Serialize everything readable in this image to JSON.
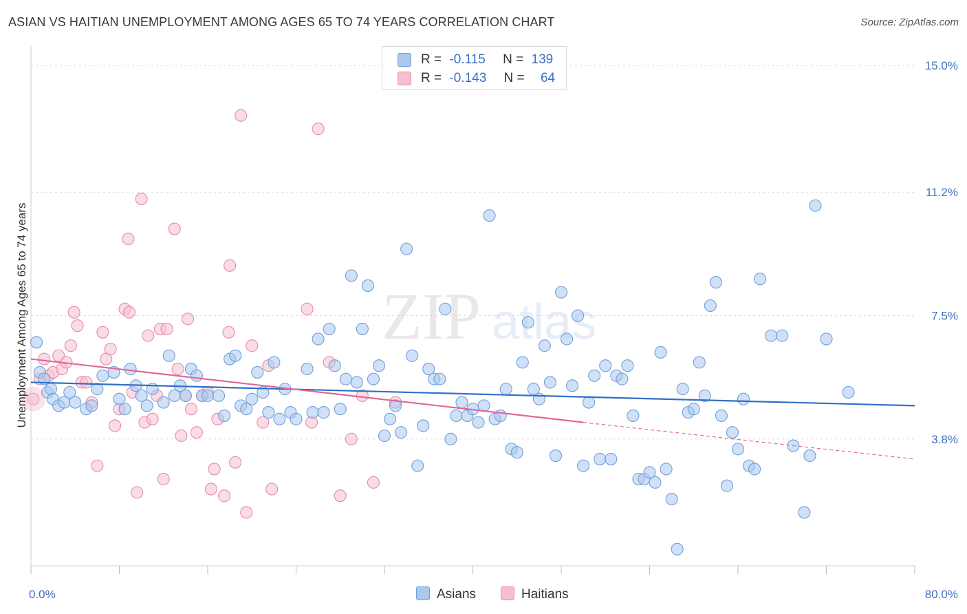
{
  "header": {
    "title": "ASIAN VS HAITIAN UNEMPLOYMENT AMONG AGES 65 TO 74 YEARS CORRELATION CHART",
    "source": "Source: ZipAtlas.com"
  },
  "watermark": {
    "text_zip": "ZIP",
    "text_atlas": "atlas"
  },
  "legend": {
    "asians": {
      "r_label": "R =",
      "r_value": "-0.115",
      "n_label": "N =",
      "n_value": "139"
    },
    "haitians": {
      "r_label": "R =",
      "r_value": "-0.143",
      "n_label": "N =",
      "n_value": "64"
    }
  },
  "colors": {
    "asian_fill": "#aac8f0",
    "asian_stroke": "#6f9fd8",
    "asian_line": "#2e6fc9",
    "haitian_fill": "#f5bfd2",
    "haitian_stroke": "#e68aaa",
    "haitian_line": "#e0679a",
    "tick_label": "#3d6fbf",
    "grid": "#dcdcdc"
  },
  "chart_data": {
    "type": "scatter",
    "title": "ASIAN VS HAITIAN UNEMPLOYMENT AMONG AGES 65 TO 74 YEARS CORRELATION CHART",
    "xlabel": "",
    "ylabel": "Unemployment Among Ages 65 to 74 years",
    "xlim": [
      0,
      80
    ],
    "ylim": [
      0,
      15.6
    ],
    "x_tick_labels": [
      {
        "value": 0,
        "label": "0.0%"
      },
      {
        "value": 80,
        "label": "80.0%"
      }
    ],
    "y_tick_labels": [
      {
        "value": 3.8,
        "label": "3.8%"
      },
      {
        "value": 7.5,
        "label": "7.5%"
      },
      {
        "value": 11.2,
        "label": "11.2%"
      },
      {
        "value": 15.0,
        "label": "15.0%"
      }
    ],
    "grid": true,
    "legend_position": "top-center",
    "series": [
      {
        "name": "Asians",
        "trend": {
          "x": [
            0,
            80
          ],
          "y": [
            5.5,
            4.8
          ]
        },
        "points": [
          [
            0.5,
            6.7
          ],
          [
            0.8,
            5.8
          ],
          [
            1.2,
            5.6
          ],
          [
            1.5,
            5.2
          ],
          [
            1.8,
            5.3
          ],
          [
            2,
            5
          ],
          [
            2.5,
            4.8
          ],
          [
            3,
            4.9
          ],
          [
            3.5,
            5.2
          ],
          [
            4,
            4.9
          ],
          [
            5,
            4.7
          ],
          [
            5.5,
            4.8
          ],
          [
            6,
            5.3
          ],
          [
            6.5,
            5.7
          ],
          [
            7.5,
            5.8
          ],
          [
            8,
            5
          ],
          [
            8.5,
            4.7
          ],
          [
            9,
            5.9
          ],
          [
            9.5,
            5.4
          ],
          [
            10,
            5.1
          ],
          [
            10.5,
            4.8
          ],
          [
            11,
            5.3
          ],
          [
            12,
            4.9
          ],
          [
            12.5,
            6.3
          ],
          [
            13,
            5.1
          ],
          [
            13.5,
            5.4
          ],
          [
            14,
            5.1
          ],
          [
            14.5,
            5.9
          ],
          [
            15,
            5.7
          ],
          [
            15.5,
            5.1
          ],
          [
            16,
            5.1
          ],
          [
            17,
            5.1
          ],
          [
            17.5,
            4.5
          ],
          [
            18,
            6.2
          ],
          [
            18.5,
            6.3
          ],
          [
            19,
            4.8
          ],
          [
            19.5,
            4.7
          ],
          [
            20,
            5.0
          ],
          [
            20.5,
            5.8
          ],
          [
            21,
            5.2
          ],
          [
            21.5,
            4.6
          ],
          [
            22,
            6.1
          ],
          [
            22.5,
            4.4
          ],
          [
            23,
            5.3
          ],
          [
            23.5,
            4.6
          ],
          [
            24,
            4.4
          ],
          [
            25,
            5.9
          ],
          [
            25.5,
            4.6
          ],
          [
            26,
            6.8
          ],
          [
            26.5,
            4.6
          ],
          [
            27,
            7.1
          ],
          [
            27.5,
            6.0
          ],
          [
            28,
            4.7
          ],
          [
            28.5,
            5.6
          ],
          [
            29,
            8.7
          ],
          [
            29.5,
            5.5
          ],
          [
            30,
            7.1
          ],
          [
            30.5,
            8.4
          ],
          [
            31,
            5.6
          ],
          [
            31.5,
            6.0
          ],
          [
            32,
            3.9
          ],
          [
            32.5,
            4.4
          ],
          [
            33,
            4.8
          ],
          [
            33.5,
            4.0
          ],
          [
            34,
            9.5
          ],
          [
            34.5,
            6.3
          ],
          [
            35,
            3.0
          ],
          [
            35.5,
            4.2
          ],
          [
            36,
            5.9
          ],
          [
            36.5,
            5.6
          ],
          [
            37,
            5.6
          ],
          [
            37.5,
            7.7
          ],
          [
            38,
            3.8
          ],
          [
            38.5,
            4.5
          ],
          [
            39,
            4.9
          ],
          [
            39.5,
            4.5
          ],
          [
            40,
            4.7
          ],
          [
            40.5,
            4.3
          ],
          [
            41,
            4.8
          ],
          [
            41.5,
            10.5
          ],
          [
            42,
            4.4
          ],
          [
            42.5,
            4.5
          ],
          [
            43,
            5.3
          ],
          [
            43.5,
            3.5
          ],
          [
            44,
            3.4
          ],
          [
            44.5,
            6.1
          ],
          [
            45,
            7.3
          ],
          [
            45.5,
            5.3
          ],
          [
            46,
            5.0
          ],
          [
            46.5,
            6.6
          ],
          [
            47,
            5.5
          ],
          [
            47.5,
            3.3
          ],
          [
            48,
            8.2
          ],
          [
            48.5,
            6.8
          ],
          [
            49,
            5.4
          ],
          [
            49.5,
            7.5
          ],
          [
            50,
            3.0
          ],
          [
            50.5,
            4.9
          ],
          [
            51,
            5.7
          ],
          [
            51.5,
            3.2
          ],
          [
            52,
            6.0
          ],
          [
            52.5,
            3.2
          ],
          [
            53,
            5.7
          ],
          [
            53.5,
            5.6
          ],
          [
            54,
            6.0
          ],
          [
            54.5,
            4.5
          ],
          [
            55,
            2.6
          ],
          [
            55.5,
            2.6
          ],
          [
            56,
            2.8
          ],
          [
            56.5,
            2.5
          ],
          [
            57,
            6.4
          ],
          [
            57.5,
            2.9
          ],
          [
            58,
            2.0
          ],
          [
            58.5,
            0.5
          ],
          [
            59,
            5.3
          ],
          [
            59.5,
            4.6
          ],
          [
            60,
            4.7
          ],
          [
            60.5,
            6.1
          ],
          [
            61,
            5.1
          ],
          [
            61.5,
            7.8
          ],
          [
            62,
            8.5
          ],
          [
            62.5,
            4.5
          ],
          [
            63,
            2.4
          ],
          [
            63.5,
            4.0
          ],
          [
            64,
            3.5
          ],
          [
            64.5,
            5.0
          ],
          [
            65,
            3.0
          ],
          [
            65.5,
            2.9
          ],
          [
            66,
            8.6
          ],
          [
            67,
            6.9
          ],
          [
            68,
            6.9
          ],
          [
            69,
            3.6
          ],
          [
            70,
            1.6
          ],
          [
            70.5,
            3.3
          ],
          [
            71,
            10.8
          ],
          [
            72,
            6.8
          ],
          [
            74,
            5.2
          ]
        ]
      },
      {
        "name": "Haitians",
        "trend": {
          "x": [
            0,
            50
          ],
          "y": [
            6.2,
            4.3
          ]
        },
        "trend_dashed": {
          "x": [
            50,
            80
          ],
          "y": [
            4.3,
            3.2
          ]
        },
        "points": [
          [
            0.2,
            5.0
          ],
          [
            0.8,
            5.6
          ],
          [
            1.2,
            6.2
          ],
          [
            1.6,
            5.7
          ],
          [
            2.0,
            5.8
          ],
          [
            2.5,
            6.3
          ],
          [
            2.8,
            5.9
          ],
          [
            3.2,
            6.1
          ],
          [
            3.6,
            6.6
          ],
          [
            3.9,
            7.6
          ],
          [
            4.2,
            7.2
          ],
          [
            4.6,
            5.5
          ],
          [
            5,
            5.5
          ],
          [
            5.5,
            4.9
          ],
          [
            6.0,
            3.0
          ],
          [
            6.5,
            7.0
          ],
          [
            6.8,
            6.2
          ],
          [
            7.2,
            6.5
          ],
          [
            7.6,
            4.2
          ],
          [
            8,
            4.7
          ],
          [
            8.5,
            7.7
          ],
          [
            8.8,
            9.8
          ],
          [
            8.9,
            7.6
          ],
          [
            9.2,
            5.2
          ],
          [
            9.6,
            2.2
          ],
          [
            10,
            11.0
          ],
          [
            10.3,
            4.3
          ],
          [
            10.6,
            6.9
          ],
          [
            11,
            4.4
          ],
          [
            11.4,
            5.1
          ],
          [
            11.7,
            7.1
          ],
          [
            12,
            2.6
          ],
          [
            12.3,
            7.1
          ],
          [
            13,
            10.1
          ],
          [
            13.3,
            5.9
          ],
          [
            13.6,
            3.9
          ],
          [
            14,
            5.1
          ],
          [
            14.2,
            7.4
          ],
          [
            14.5,
            4.7
          ],
          [
            15,
            4.0
          ],
          [
            15.5,
            5.1
          ],
          [
            16,
            5.2
          ],
          [
            16.3,
            2.3
          ],
          [
            16.6,
            2.9
          ],
          [
            16.9,
            4.4
          ],
          [
            17.5,
            2.1
          ],
          [
            17.9,
            7.0
          ],
          [
            18,
            9.0
          ],
          [
            18.5,
            3.1
          ],
          [
            19,
            13.5
          ],
          [
            19.5,
            1.6
          ],
          [
            20,
            6.6
          ],
          [
            21,
            4.3
          ],
          [
            21.5,
            6.0
          ],
          [
            21.8,
            2.3
          ],
          [
            25,
            7.7
          ],
          [
            25.4,
            4.3
          ],
          [
            26,
            13.1
          ],
          [
            27,
            6.1
          ],
          [
            28,
            2.1
          ],
          [
            29,
            3.8
          ],
          [
            30,
            5.1
          ],
          [
            31,
            2.5
          ],
          [
            33,
            4.9
          ]
        ]
      }
    ]
  },
  "bottom_legend": {
    "asians_label": "Asians",
    "haitians_label": "Haitians"
  }
}
